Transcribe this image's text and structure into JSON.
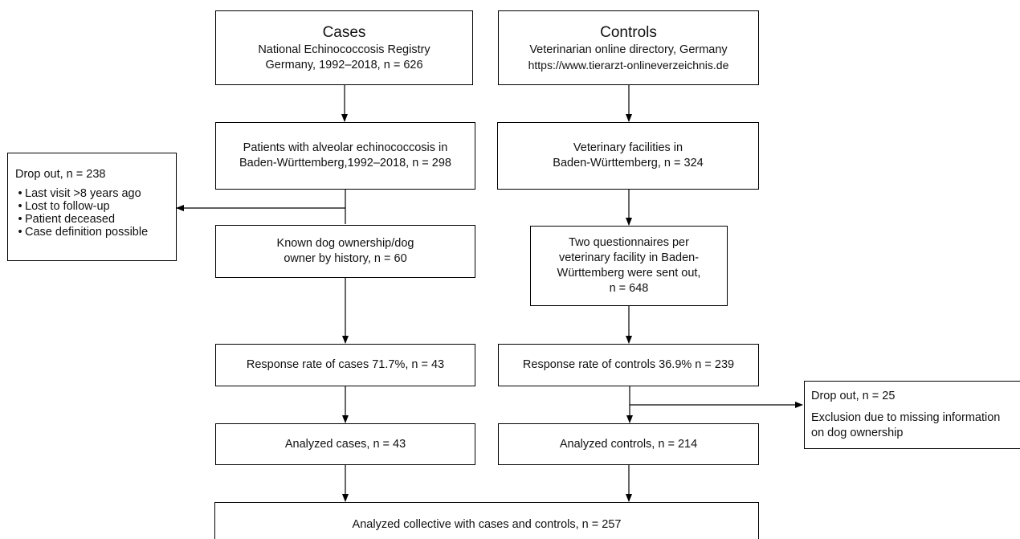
{
  "cases_source": {
    "title": "Cases",
    "line1": "National Echinococcosis Registry",
    "line2": "Germany, 1992–2018, n = 626"
  },
  "controls_source": {
    "title": "Controls",
    "line1": "Veterinarian online directory, Germany",
    "line2": "https://www.tierarzt-onlineverzeichnis.de"
  },
  "patients_box": {
    "line1": "Patients with alveolar echinococcosis in",
    "line2": "Baden-Württemberg,1992–2018,  n = 298"
  },
  "vet_facilities_box": {
    "line1": "Veterinary facilities in",
    "line2": "Baden-Württemberg, n = 324"
  },
  "dropout_cases": {
    "title": "Drop out, n = 238",
    "reasons": [
      "Last visit >8 years ago",
      "Lost to follow-up",
      "Patient deceased",
      "Case definition possible"
    ]
  },
  "dog_ownership_box": {
    "line1": "Known dog ownership/dog",
    "line2": "owner by history, n = 60"
  },
  "questionnaires_box": {
    "line1": "Two questionnaires per",
    "line2": "veterinary facility in Baden-",
    "line3": "Württemberg were sent out,",
    "line4": "n = 648"
  },
  "response_cases": {
    "text": "Response rate of cases 71.7%,  n = 43"
  },
  "response_controls": {
    "text": "Response rate of controls 36.9%  n = 239"
  },
  "dropout_controls": {
    "title": "Drop out, n = 25",
    "line1": "Exclusion due to missing information",
    "line2": "on dog ownership"
  },
  "analyzed_cases": {
    "text": "Analyzed cases, n = 43"
  },
  "analyzed_controls": {
    "text": "Analyzed controls,  n = 214"
  },
  "analyzed_collective": {
    "text": "Analyzed collective with cases and controls, n = 257"
  },
  "colors": {
    "line": "#000000",
    "text": "#111111",
    "background": "#ffffff"
  }
}
